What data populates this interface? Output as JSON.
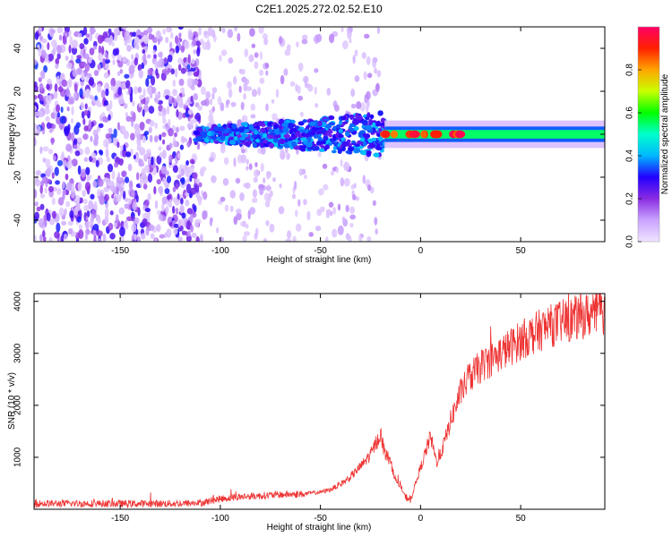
{
  "chart_data": [
    {
      "type": "heatmap",
      "title": "C2E1.2025.272.02.52.E10",
      "xlabel": "Height of straight line (km)",
      "ylabel": "Frequency (Hz)",
      "xlim": [
        -193,
        92
      ],
      "ylim": [
        -50,
        50
      ],
      "xticks": [
        -150,
        -100,
        -50,
        0,
        50
      ],
      "xtick_labels": [
        "-150",
        "-100",
        "-50",
        "0",
        "50"
      ],
      "yticks": [
        -40,
        -20,
        0,
        20,
        40
      ],
      "ytick_labels": [
        "-40",
        "-20",
        "0",
        "20",
        "40"
      ],
      "colorbar": {
        "label": "Normalized spectral amplitude",
        "range": [
          0,
          1
        ],
        "ticks": [
          0.0,
          0.2,
          0.4,
          0.6,
          0.8
        ],
        "tick_labels": [
          "0.0",
          "0.2",
          "0.4",
          "0.6",
          "0.8"
        ],
        "colors": [
          "#f0e4ff",
          "#c9a3ff",
          "#8a2be2",
          "#2200ff",
          "#00b7ff",
          "#00ffcc",
          "#00ff00",
          "#c8ff00",
          "#ffa500",
          "#ff2000",
          "#ff0066"
        ]
      },
      "regions": [
        {
          "x_range": [
            -193,
            -110
          ],
          "freq_range": [
            -50,
            50
          ],
          "amplitude": 0.12,
          "pattern": "dense scattered speckle"
        },
        {
          "x_range": [
            -110,
            -20
          ],
          "freq_range": [
            -50,
            50
          ],
          "amplitude": 0.04,
          "pattern": "sparse scattered speckle"
        },
        {
          "x_range": [
            -112,
            -18
          ],
          "freq_center": 0,
          "freq_width": 10,
          "amplitude": 0.3,
          "pattern": "noisy band"
        },
        {
          "x_range": [
            -18,
            92
          ],
          "freq_center": 0,
          "freq_width": 4,
          "amplitude": 0.6,
          "pattern": "narrow coherent band"
        }
      ]
    },
    {
      "type": "line",
      "xlabel": "Height of straight line (km)",
      "ylabel": "SNR (10 * v/v)",
      "xlim": [
        -193,
        92
      ],
      "ylim": [
        0,
        4150
      ],
      "xticks": [
        -150,
        -100,
        -50,
        0,
        50
      ],
      "xtick_labels": [
        "-150",
        "-100",
        "-50",
        "0",
        "50"
      ],
      "yticks": [
        1000,
        2000,
        3000,
        4000
      ],
      "ytick_labels": [
        "1000",
        "2000",
        "3000",
        "4000"
      ],
      "color": "#ee3333",
      "series": [
        {
          "x": [
            -193,
            -180,
            -160,
            -140,
            -120,
            -110,
            -100,
            -90,
            -80,
            -70,
            -60,
            -50,
            -45,
            -40,
            -35,
            -30,
            -25,
            -20,
            -18,
            -15,
            -12,
            -10,
            -8,
            -5,
            0,
            5,
            8,
            10,
            12,
            15,
            20,
            25,
            30,
            40,
            50,
            60,
            70,
            80,
            92
          ],
          "y": [
            110,
            110,
            110,
            105,
            110,
            120,
            200,
            240,
            260,
            280,
            290,
            330,
            380,
            480,
            620,
            820,
            1050,
            1450,
            1100,
            900,
            520,
            450,
            250,
            180,
            800,
            1400,
            900,
            1050,
            1300,
            1700,
            2250,
            2550,
            2750,
            3000,
            3250,
            3450,
            3600,
            3700,
            3800
          ]
        }
      ]
    }
  ]
}
